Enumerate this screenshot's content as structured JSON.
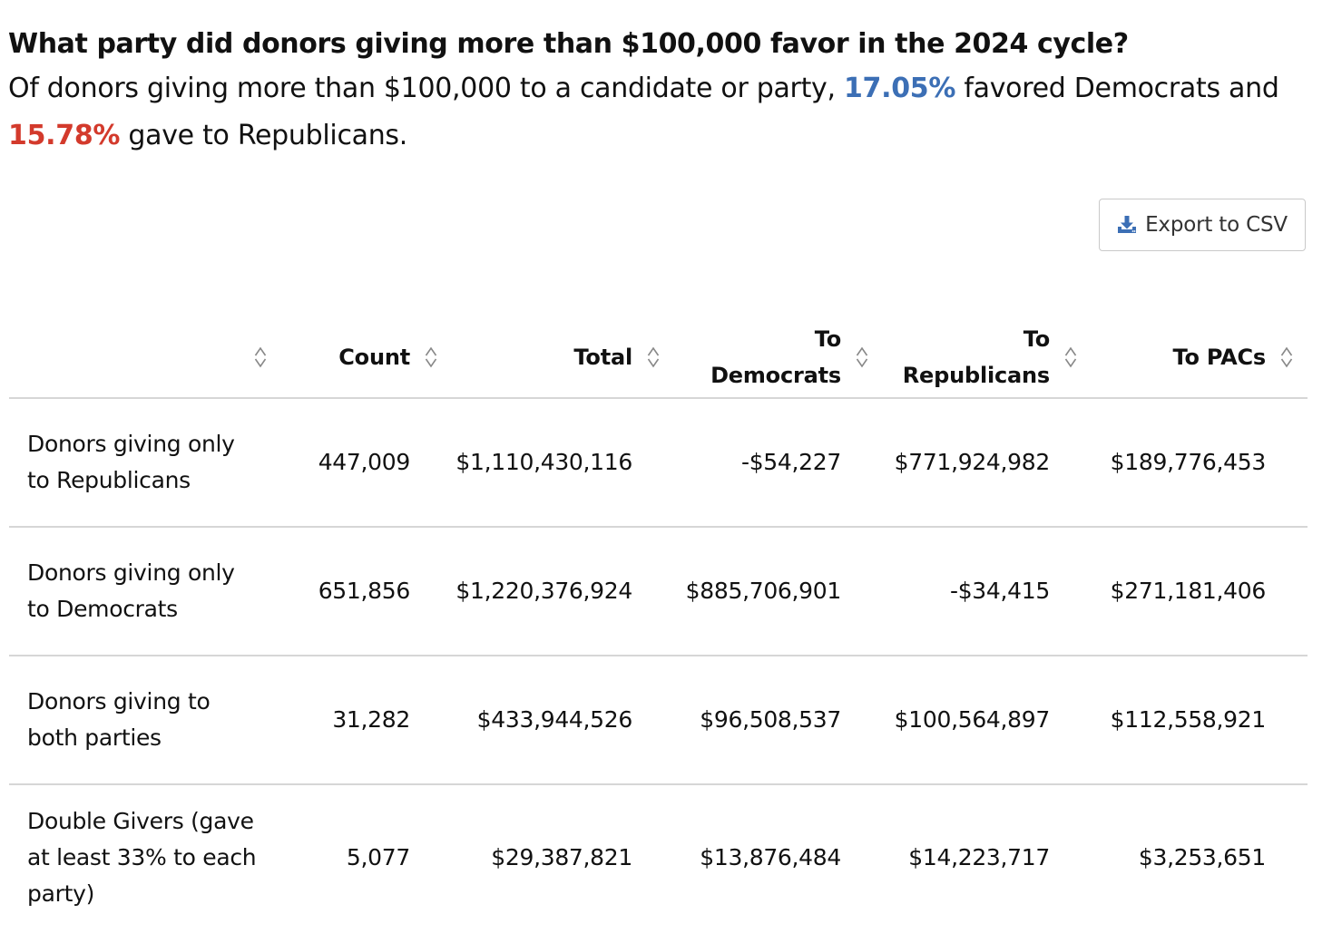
{
  "header": {
    "headline": "What party did donors giving more than $100,000 favor in the 2024 cycle?",
    "subtitle_part1": "Of donors giving more than $100,000 to a candidate or party, ",
    "dem_pct": "17.05%",
    "subtitle_part2": " favored Democrats and ",
    "rep_pct": "15.78%",
    "subtitle_part3": " gave to Republicans."
  },
  "colors": {
    "democrat": "#3c6fb5",
    "republican": "#d33a2c",
    "export_icon": "#3c6fb5"
  },
  "export": {
    "label": "Export to CSV",
    "icon": "download-icon"
  },
  "table": {
    "columns": [
      {
        "label": ""
      },
      {
        "label": "Count"
      },
      {
        "label": "Total"
      },
      {
        "label_line1": "To",
        "label_line2": "Democrats"
      },
      {
        "label_line1": "To",
        "label_line2": "Republicans"
      },
      {
        "label": "To PACs"
      }
    ],
    "rows": [
      {
        "label": "Donors giving only to Republicans",
        "count": "447,009",
        "total": "$1,110,430,116",
        "to_democrats": "-$54,227",
        "to_republicans": "$771,924,982",
        "to_pacs": "$189,776,453"
      },
      {
        "label": "Donors giving only to Democrats",
        "count": "651,856",
        "total": "$1,220,376,924",
        "to_democrats": "$885,706,901",
        "to_republicans": "-$34,415",
        "to_pacs": "$271,181,406"
      },
      {
        "label": "Donors giving to both parties",
        "count": "31,282",
        "total": "$433,944,526",
        "to_democrats": "$96,508,537",
        "to_republicans": "$100,564,897",
        "to_pacs": "$112,558,921"
      },
      {
        "label": "Double Givers (gave at least 33% to each party)",
        "count": "5,077",
        "total": "$29,387,821",
        "to_democrats": "$13,876,484",
        "to_republicans": "$14,223,717",
        "to_pacs": "$3,253,651"
      }
    ]
  }
}
